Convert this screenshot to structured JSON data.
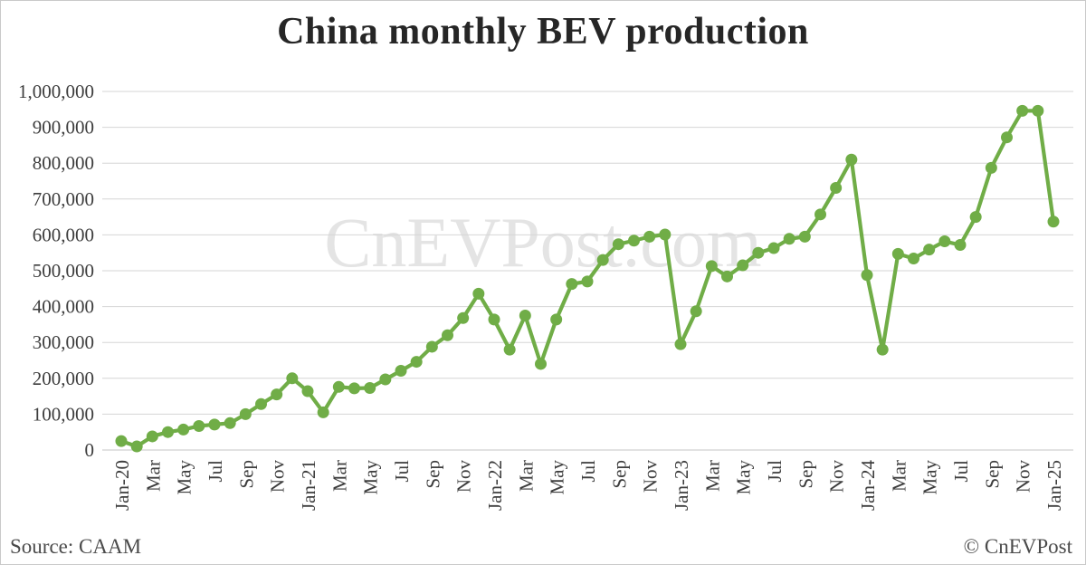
{
  "page": {
    "title": "China monthly BEV production",
    "watermark": "CnEVPost.com",
    "source": "Source: CAAM",
    "copyright": "© CnEVPost"
  },
  "chart_data": {
    "type": "line",
    "title": "China monthly BEV production",
    "series_name": "Monthly BEV production (units)",
    "line_color": "#70ad47",
    "marker": "circle",
    "grid": "horizontal",
    "legend": "none",
    "ylim": [
      0,
      1000000
    ],
    "y_tick_values": [
      0,
      100000,
      200000,
      300000,
      400000,
      500000,
      600000,
      700000,
      800000,
      900000,
      1000000
    ],
    "y_tick_labels": [
      "0",
      "100,000",
      "200,000",
      "300,000",
      "400,000",
      "500,000",
      "600,000",
      "700,000",
      "800,000",
      "900,000",
      "1,000,000"
    ],
    "x_tick_labels": [
      "Jan-20",
      "Mar",
      "May",
      "Jul",
      "Sep",
      "Nov",
      "Jan-21",
      "Mar",
      "May",
      "Jul",
      "Sep",
      "Nov",
      "Jan-22",
      "Mar",
      "May",
      "Jul",
      "Sep",
      "Nov",
      "Jan-23",
      "Mar",
      "May",
      "Jul",
      "Sep",
      "Nov",
      "Jan-24",
      "Mar",
      "May",
      "Jul",
      "Sep",
      "Nov",
      "Jan-25"
    ],
    "x_tick_every": 2,
    "x": [
      "Jan-20",
      "Feb-20",
      "Mar-20",
      "Apr-20",
      "May-20",
      "Jun-20",
      "Jul-20",
      "Aug-20",
      "Sep-20",
      "Oct-20",
      "Nov-20",
      "Dec-20",
      "Jan-21",
      "Feb-21",
      "Mar-21",
      "Apr-21",
      "May-21",
      "Jun-21",
      "Jul-21",
      "Aug-21",
      "Sep-21",
      "Oct-21",
      "Nov-21",
      "Dec-21",
      "Jan-22",
      "Feb-22",
      "Mar-22",
      "Apr-22",
      "May-22",
      "Jun-22",
      "Jul-22",
      "Aug-22",
      "Sep-22",
      "Oct-22",
      "Nov-22",
      "Dec-22",
      "Jan-23",
      "Feb-23",
      "Mar-23",
      "Apr-23",
      "May-23",
      "Jun-23",
      "Jul-23",
      "Aug-23",
      "Sep-23",
      "Oct-23",
      "Nov-23",
      "Dec-23",
      "Jan-24",
      "Feb-24",
      "Mar-24",
      "Apr-24",
      "May-24",
      "Jun-24",
      "Jul-24",
      "Aug-24",
      "Sep-24",
      "Oct-24",
      "Nov-24",
      "Dec-24",
      "Jan-25"
    ],
    "values": [
      25000,
      10000,
      38000,
      50000,
      57000,
      67000,
      71000,
      75000,
      100000,
      128000,
      155000,
      200000,
      164000,
      105000,
      176000,
      172000,
      173000,
      197000,
      221000,
      246000,
      288000,
      320000,
      368000,
      436000,
      364000,
      280000,
      375000,
      240000,
      364000,
      463000,
      470000,
      530000,
      574000,
      584000,
      595000,
      601000,
      295000,
      387000,
      513000,
      484000,
      515000,
      550000,
      563000,
      589000,
      595000,
      657000,
      731000,
      810000,
      488000,
      280000,
      547000,
      534000,
      559000,
      582000,
      572000,
      650000,
      787000,
      872000,
      946000,
      946000,
      637000
    ]
  }
}
